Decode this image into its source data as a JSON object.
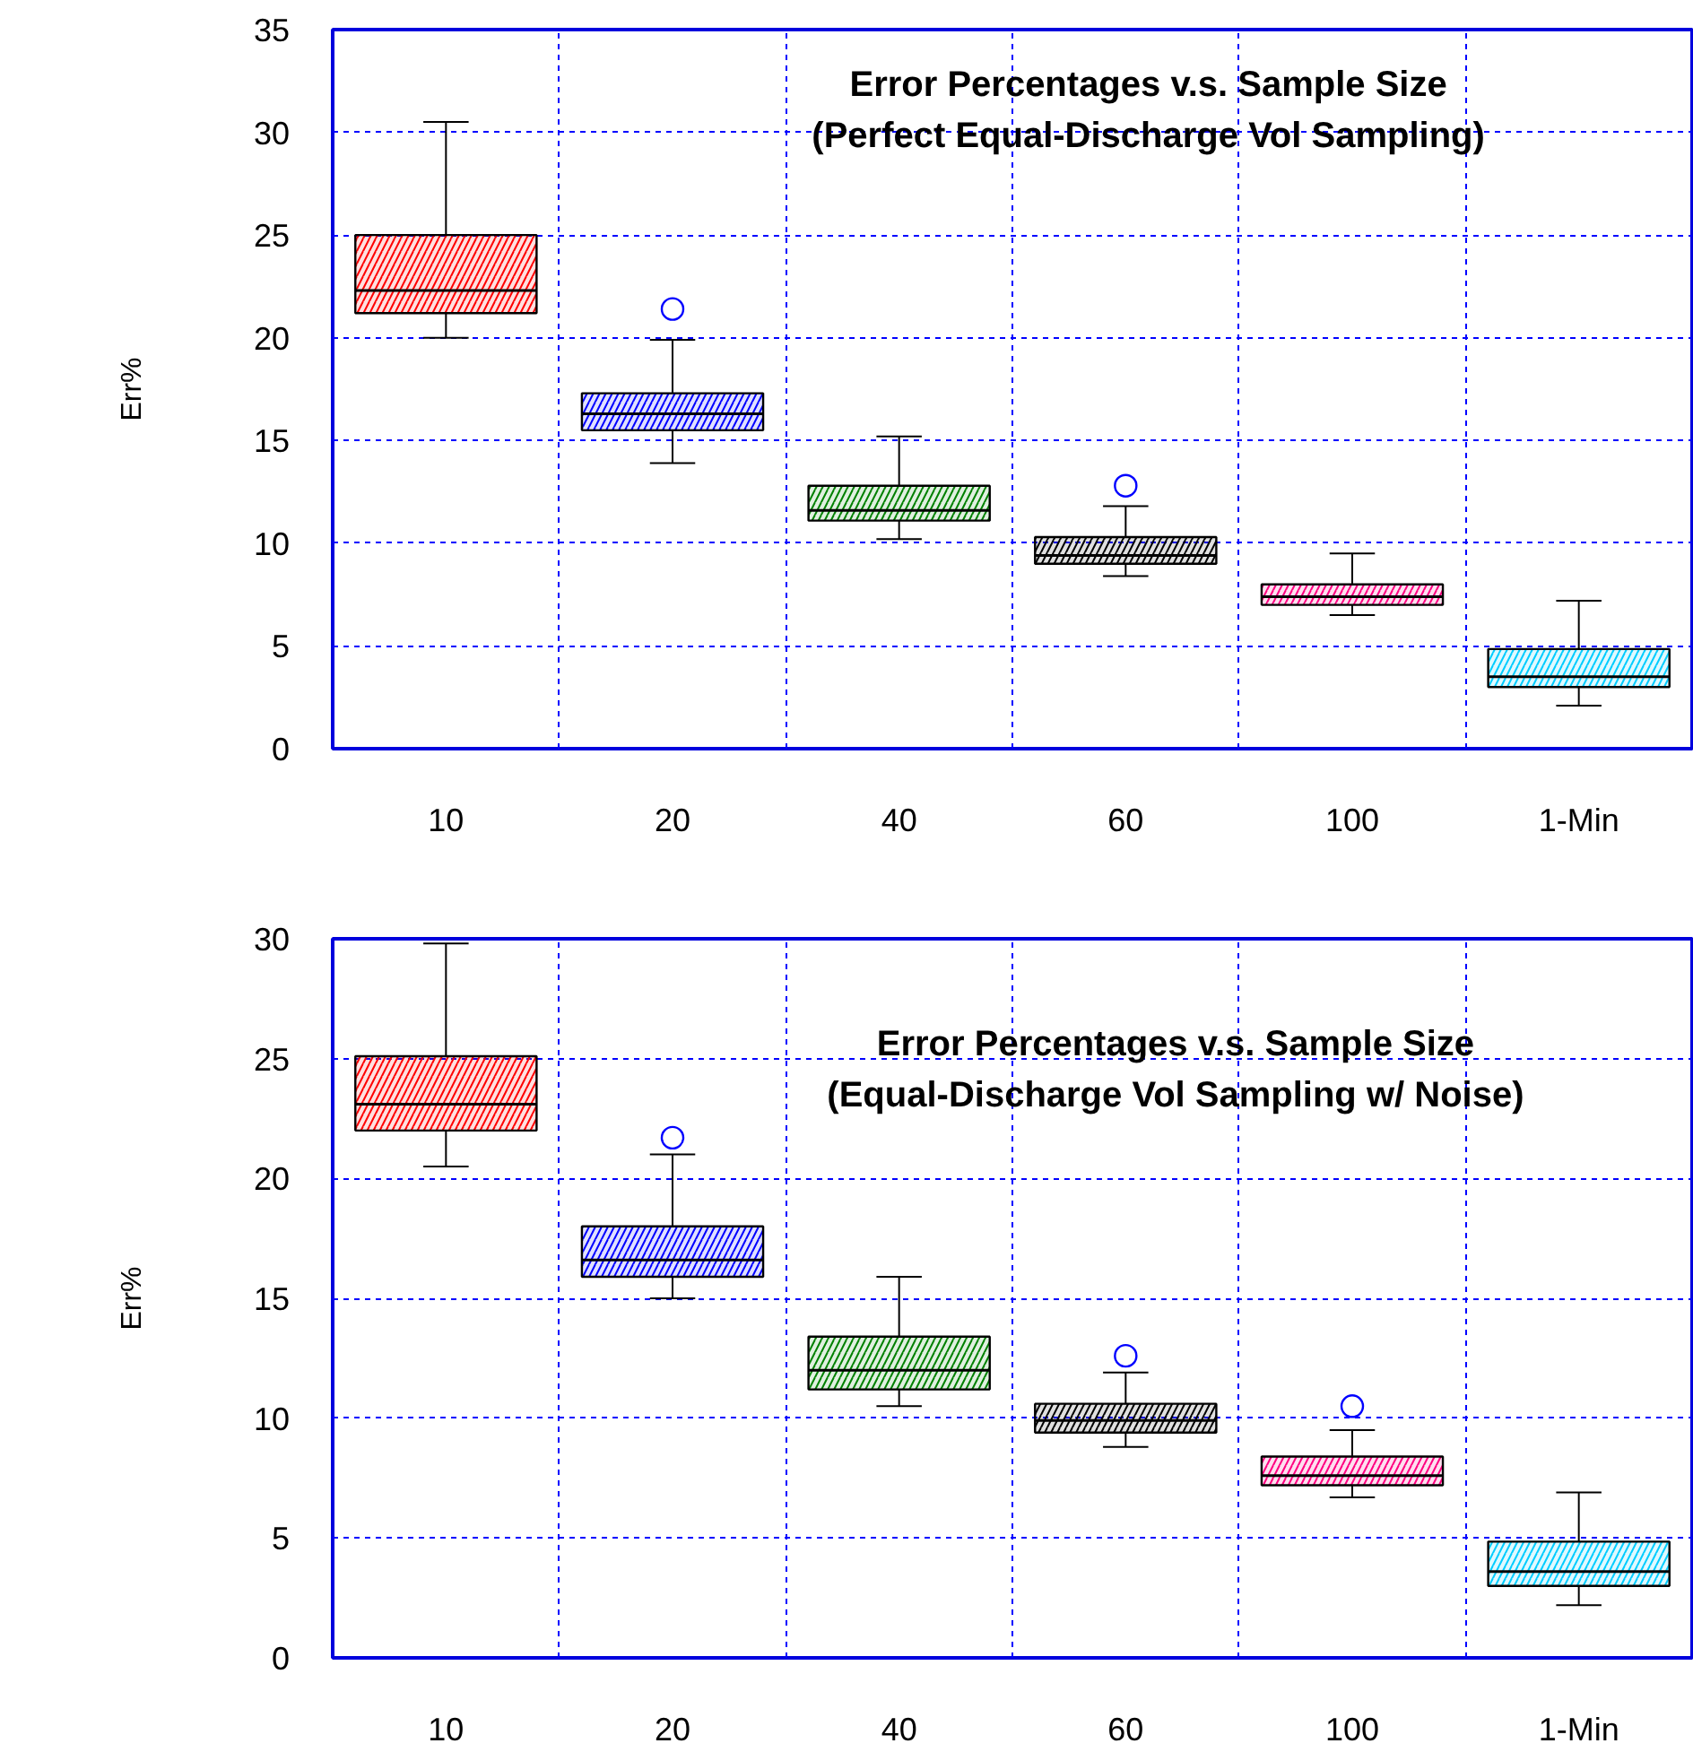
{
  "chart_data": [
    {
      "type": "box",
      "title": "Error Percentages v.s. Sample Size\n(Perfect Equal-Discharge Vol Sampling)",
      "ylabel": "Err%",
      "categories": [
        "10",
        "20",
        "40",
        "60",
        "100",
        "1-Min"
      ],
      "ylim": [
        0,
        35
      ],
      "yticks": [
        0,
        5,
        10,
        15,
        20,
        25,
        30,
        35
      ],
      "grid": true,
      "colors": [
        "#ff0000",
        "#0000ff",
        "#008000",
        "#000000",
        "#ff0080",
        "#00ccff"
      ],
      "boxes": [
        {
          "low": 20.0,
          "q1": 21.2,
          "median": 22.3,
          "q3": 25.0,
          "high": 30.5
        },
        {
          "low": 13.9,
          "q1": 15.5,
          "median": 16.3,
          "q3": 17.3,
          "high": 19.9,
          "outliers": [
            21.4
          ]
        },
        {
          "low": 10.2,
          "q1": 11.1,
          "median": 11.6,
          "q3": 12.8,
          "high": 15.2
        },
        {
          "low": 8.4,
          "q1": 9.0,
          "median": 9.4,
          "q3": 10.3,
          "high": 11.8,
          "outliers": [
            12.8
          ]
        },
        {
          "low": 6.5,
          "q1": 7.0,
          "median": 7.4,
          "q3": 8.0,
          "high": 9.5
        },
        {
          "low": 2.1,
          "q1": 3.0,
          "median": 3.5,
          "q3": 4.85,
          "high": 7.2
        }
      ]
    },
    {
      "type": "box",
      "title": "Error Percentages v.s. Sample Size\n(Equal-Discharge Vol Sampling w/ Noise)",
      "ylabel": "Err%",
      "categories": [
        "10",
        "20",
        "40",
        "60",
        "100",
        "1-Min"
      ],
      "ylim": [
        0,
        30
      ],
      "yticks": [
        0,
        5,
        10,
        15,
        20,
        25,
        30
      ],
      "grid": true,
      "colors": [
        "#ff0000",
        "#0000ff",
        "#008000",
        "#000000",
        "#ff0080",
        "#00ccff"
      ],
      "boxes": [
        {
          "low": 20.5,
          "q1": 22.0,
          "median": 23.1,
          "q3": 25.1,
          "high": 29.8
        },
        {
          "low": 15.0,
          "q1": 15.9,
          "median": 16.6,
          "q3": 18.0,
          "high": 21.0,
          "outliers": [
            21.7
          ]
        },
        {
          "low": 10.5,
          "q1": 11.2,
          "median": 12.0,
          "q3": 13.4,
          "high": 15.9
        },
        {
          "low": 8.8,
          "q1": 9.4,
          "median": 9.9,
          "q3": 10.6,
          "high": 11.9,
          "outliers": [
            12.6
          ]
        },
        {
          "low": 6.7,
          "q1": 7.2,
          "median": 7.6,
          "q3": 8.4,
          "high": 9.5,
          "outliers": [
            10.5
          ]
        },
        {
          "low": 2.2,
          "q1": 3.0,
          "median": 3.6,
          "q3": 4.85,
          "high": 6.9
        }
      ]
    }
  ]
}
